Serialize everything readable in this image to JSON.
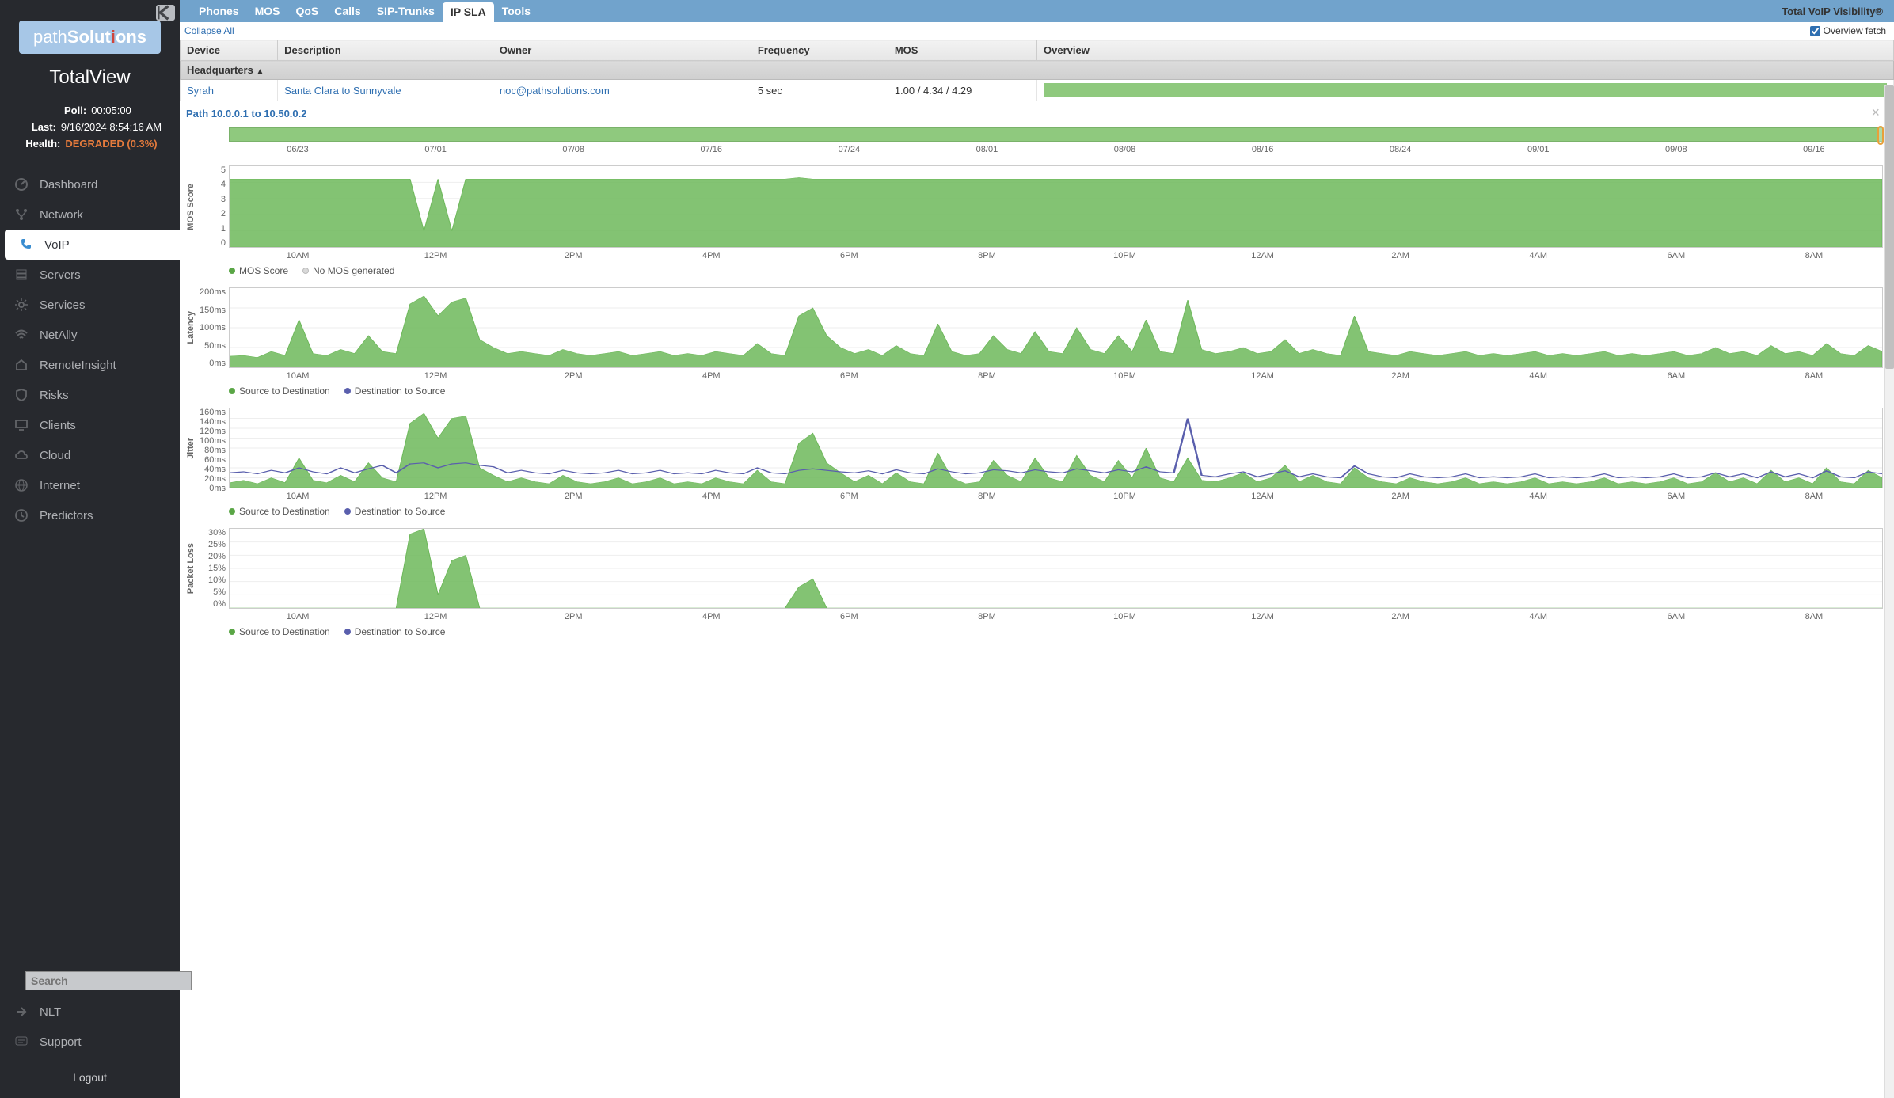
{
  "sidebar": {
    "logo_prefix": "path",
    "logo_rest": "Solut",
    "logo_i_pre": "i",
    "logo_end": "ons",
    "product": "TotalView",
    "poll_label": "Poll:",
    "poll_value": "00:05:00",
    "last_label": "Last:",
    "last_value": "9/16/2024 8:54:16 AM",
    "health_label": "Health:",
    "health_value": "DEGRADED (0.3%)",
    "items": [
      {
        "label": "Dashboard",
        "icon": "gauge"
      },
      {
        "label": "Network",
        "icon": "branch"
      },
      {
        "label": "VoIP",
        "icon": "phone",
        "active": true
      },
      {
        "label": "Servers",
        "icon": "stack"
      },
      {
        "label": "Services",
        "icon": "gear"
      },
      {
        "label": "NetAlly",
        "icon": "wifi"
      },
      {
        "label": "RemoteInsight",
        "icon": "home"
      },
      {
        "label": "Risks",
        "icon": "shield"
      },
      {
        "label": "Clients",
        "icon": "monitor"
      },
      {
        "label": "Cloud",
        "icon": "cloud"
      },
      {
        "label": "Internet",
        "icon": "globe"
      },
      {
        "label": "Predictors",
        "icon": "clock"
      }
    ],
    "search_placeholder": "Search",
    "nlt_label": "NLT",
    "support_label": "Support",
    "logout": "Logout"
  },
  "tabs": {
    "items": [
      "Phones",
      "MOS",
      "QoS",
      "Calls",
      "SIP-Trunks",
      "IP SLA",
      "Tools"
    ],
    "active": "IP SLA",
    "brand": "Total VoIP Visibility®"
  },
  "toolbar": {
    "collapse_all": "Collapse All",
    "overview_fetch": "Overview fetch"
  },
  "table": {
    "columns": [
      "Device",
      "Description",
      "Owner",
      "Frequency",
      "MOS",
      "Overview"
    ],
    "group": "Headquarters",
    "row": {
      "device": "Syrah",
      "description": "Santa Clara to Sunnyvale",
      "owner": "noc@pathsolutions.com",
      "frequency": "5 sec",
      "mos": "1.00 / 4.34 / 4.29"
    }
  },
  "detail": {
    "path_title": "Path 10.0.0.1 to 10.50.0.2",
    "timeline_ticks": [
      "06/23",
      "07/01",
      "07/08",
      "07/16",
      "07/24",
      "08/01",
      "08/08",
      "08/16",
      "08/24",
      "09/01",
      "09/08",
      "09/16"
    ],
    "x_ticks": [
      "10AM",
      "12PM",
      "2PM",
      "4PM",
      "6PM",
      "8PM",
      "10PM",
      "12AM",
      "2AM",
      "4AM",
      "6AM",
      "8AM"
    ]
  },
  "charts": {
    "mos": {
      "ylabel": "MOS Score",
      "y_ticks": [
        "5",
        "4",
        "3",
        "2",
        "1",
        "0"
      ],
      "height": 104,
      "legend": [
        "MOS Score",
        "No MOS generated"
      ],
      "fill_color": "#6db85a",
      "data": [
        4.2,
        4.2,
        4.2,
        4.2,
        4.2,
        4.2,
        4.2,
        4.2,
        4.2,
        4.2,
        4.2,
        4.2,
        4.2,
        4.2,
        1.0,
        4.2,
        1.0,
        4.2,
        4.2,
        4.2,
        4.2,
        4.2,
        4.2,
        4.2,
        4.2,
        4.2,
        4.2,
        4.2,
        4.2,
        4.2,
        4.2,
        4.2,
        4.2,
        4.2,
        4.2,
        4.2,
        4.2,
        4.2,
        4.2,
        4.2,
        4.2,
        4.3,
        4.2,
        4.2,
        4.2,
        4.2,
        4.2,
        4.2,
        4.2,
        4.2,
        4.2,
        4.2,
        4.2,
        4.2,
        4.2,
        4.2,
        4.2,
        4.2,
        4.2,
        4.2,
        4.2,
        4.2,
        4.2,
        4.2,
        4.2,
        4.2,
        4.2,
        4.2,
        4.2,
        4.2,
        4.2,
        4.2,
        4.2,
        4.2,
        4.2,
        4.2,
        4.2,
        4.2,
        4.2,
        4.2,
        4.2,
        4.2,
        4.2,
        4.2,
        4.2,
        4.2,
        4.2,
        4.2,
        4.2,
        4.2,
        4.2,
        4.2,
        4.2,
        4.2,
        4.2,
        4.2,
        4.2,
        4.2,
        4.2,
        4.2,
        4.2,
        4.2,
        4.2,
        4.2,
        4.2,
        4.2,
        4.2,
        4.2,
        4.2,
        4.2,
        4.2,
        4.2,
        4.2,
        4.2,
        4.2,
        4.2,
        4.2,
        4.2,
        4.2,
        4.2
      ],
      "y_max": 5
    },
    "latency": {
      "ylabel": "Latency",
      "y_ticks": [
        "200ms",
        "150ms",
        "100ms",
        "50ms",
        "0ms"
      ],
      "height": 102,
      "legend": [
        "Source to Destination",
        "Destination to Source"
      ],
      "fill_color": "#6db85a",
      "y_max": 200,
      "data": [
        28,
        30,
        25,
        40,
        30,
        120,
        35,
        30,
        45,
        35,
        80,
        40,
        35,
        160,
        180,
        130,
        165,
        175,
        70,
        50,
        35,
        40,
        35,
        30,
        45,
        35,
        30,
        35,
        40,
        30,
        35,
        40,
        30,
        35,
        30,
        40,
        35,
        30,
        60,
        35,
        30,
        130,
        150,
        80,
        50,
        35,
        45,
        30,
        55,
        35,
        30,
        110,
        40,
        30,
        35,
        80,
        45,
        35,
        90,
        40,
        35,
        100,
        45,
        35,
        80,
        40,
        120,
        40,
        35,
        170,
        45,
        35,
        40,
        50,
        35,
        40,
        70,
        35,
        45,
        35,
        30,
        130,
        40,
        35,
        30,
        40,
        35,
        30,
        35,
        40,
        30,
        35,
        30,
        35,
        40,
        30,
        35,
        30,
        35,
        40,
        30,
        35,
        30,
        35,
        40,
        30,
        35,
        50,
        35,
        40,
        30,
        55,
        35,
        40,
        30,
        60,
        35,
        30,
        55,
        40
      ]
    },
    "jitter": {
      "ylabel": "Jitter",
      "y_ticks": [
        "160ms",
        "140ms",
        "120ms",
        "100ms",
        "80ms",
        "60ms",
        "40ms",
        "20ms",
        "0ms"
      ],
      "height": 102,
      "legend": [
        "Source to Destination",
        "Destination to Source"
      ],
      "fill_color": "#6db85a",
      "line_color": "#5a5fad",
      "y_max": 160,
      "data_s2d": [
        10,
        15,
        8,
        20,
        10,
        60,
        15,
        10,
        25,
        12,
        50,
        20,
        12,
        130,
        150,
        100,
        140,
        145,
        40,
        25,
        12,
        20,
        12,
        8,
        25,
        12,
        8,
        12,
        20,
        8,
        12,
        20,
        8,
        12,
        8,
        20,
        12,
        8,
        35,
        12,
        8,
        90,
        110,
        50,
        30,
        12,
        25,
        8,
        30,
        12,
        8,
        70,
        20,
        8,
        12,
        55,
        25,
        12,
        60,
        20,
        12,
        65,
        25,
        12,
        55,
        20,
        80,
        20,
        12,
        60,
        15,
        12,
        20,
        30,
        12,
        20,
        45,
        12,
        25,
        12,
        8,
        40,
        20,
        12,
        8,
        20,
        12,
        8,
        12,
        20,
        8,
        12,
        8,
        12,
        20,
        8,
        12,
        8,
        12,
        20,
        8,
        12,
        8,
        12,
        20,
        8,
        12,
        30,
        12,
        20,
        8,
        35,
        12,
        20,
        8,
        40,
        12,
        8,
        35,
        20
      ],
      "data_d2s": [
        30,
        32,
        28,
        35,
        30,
        40,
        32,
        28,
        40,
        30,
        38,
        45,
        30,
        48,
        50,
        40,
        48,
        50,
        45,
        42,
        30,
        35,
        30,
        28,
        35,
        30,
        28,
        30,
        35,
        28,
        30,
        35,
        28,
        30,
        28,
        35,
        30,
        28,
        40,
        30,
        28,
        35,
        38,
        35,
        32,
        30,
        34,
        28,
        36,
        30,
        28,
        38,
        32,
        28,
        30,
        36,
        34,
        30,
        36,
        32,
        30,
        38,
        34,
        30,
        36,
        32,
        42,
        32,
        30,
        140,
        25,
        22,
        28,
        32,
        22,
        28,
        34,
        22,
        28,
        22,
        20,
        44,
        28,
        22,
        20,
        28,
        22,
        20,
        22,
        28,
        20,
        22,
        20,
        22,
        28,
        20,
        22,
        20,
        22,
        28,
        20,
        22,
        20,
        22,
        28,
        20,
        22,
        30,
        22,
        28,
        20,
        32,
        22,
        28,
        20,
        34,
        22,
        20,
        32,
        28
      ]
    },
    "loss": {
      "ylabel": "Packet Loss",
      "y_ticks": [
        "30%",
        "25%",
        "20%",
        "15%",
        "10%",
        "5%",
        "0%"
      ],
      "height": 102,
      "legend": [
        "Source to Destination",
        "Destination to Source"
      ],
      "fill_color": "#6db85a",
      "y_max": 30,
      "data": [
        0,
        0,
        0,
        0,
        0,
        0,
        0,
        0,
        0,
        0,
        0,
        0,
        0,
        28,
        30,
        5,
        18,
        20,
        0,
        0,
        0,
        0,
        0,
        0,
        0,
        0,
        0,
        0,
        0,
        0,
        0,
        0,
        0,
        0,
        0,
        0,
        0,
        0,
        0,
        0,
        0,
        8,
        11,
        0,
        0,
        0,
        0,
        0,
        0,
        0,
        0,
        0,
        0,
        0,
        0,
        0,
        0,
        0,
        0,
        0,
        0,
        0,
        0,
        0,
        0,
        0,
        0,
        0,
        0,
        0,
        0,
        0,
        0,
        0,
        0,
        0,
        0,
        0,
        0,
        0,
        0,
        0,
        0,
        0,
        0,
        0,
        0,
        0,
        0,
        0,
        0,
        0,
        0,
        0,
        0,
        0,
        0,
        0,
        0,
        0,
        0,
        0,
        0,
        0,
        0,
        0,
        0,
        0,
        0,
        0,
        0,
        0,
        0,
        0,
        0,
        0,
        0,
        0,
        0,
        0
      ]
    }
  },
  "colors": {
    "sidebar_bg": "#27292e",
    "tabbar_bg": "#71a3cc",
    "green": "#6db85a",
    "purple": "#5a5fad",
    "link": "#2f6fb1",
    "degraded": "#e47a3c"
  }
}
